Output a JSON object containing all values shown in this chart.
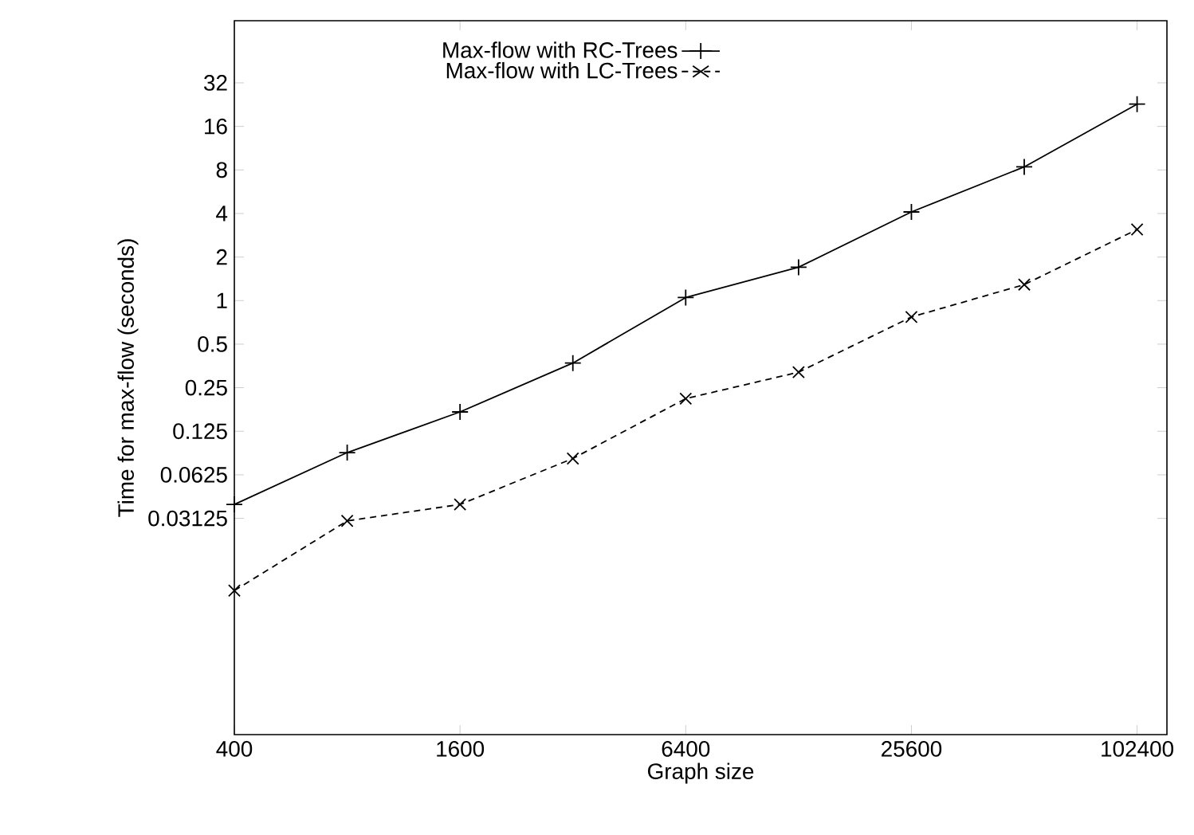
{
  "chart_data": {
    "type": "line",
    "xlabel": "Graph size",
    "ylabel": "Time for max-flow (seconds)",
    "log": "xy",
    "grid": false,
    "legend": "top",
    "x": [
      400,
      800,
      1600,
      3200,
      6400,
      12800,
      25600,
      51200,
      102400
    ],
    "xlim": [
      400,
      123000
    ],
    "ylim": [
      0.001,
      86
    ],
    "xticks": [
      400,
      1600,
      6400,
      25600,
      102400
    ],
    "yticks": [
      0.03125,
      0.0625,
      0.125,
      0.25,
      0.5,
      1,
      2,
      4,
      8,
      16,
      32
    ],
    "series": [
      {
        "name": "Max-flow with RC-Trees",
        "color": "#000000",
        "marker": "plus",
        "line_style": "solid",
        "values": [
          0.039,
          0.089,
          0.17,
          0.37,
          1.05,
          1.7,
          4.1,
          8.4,
          22.8
        ]
      },
      {
        "name": "Max-flow with LC-Trees",
        "color": "#000000",
        "marker": "cross",
        "line_style": "dashed",
        "values": [
          0.0099,
          0.03,
          0.039,
          0.081,
          0.21,
          0.32,
          0.77,
          1.29,
          3.1
        ]
      }
    ]
  }
}
